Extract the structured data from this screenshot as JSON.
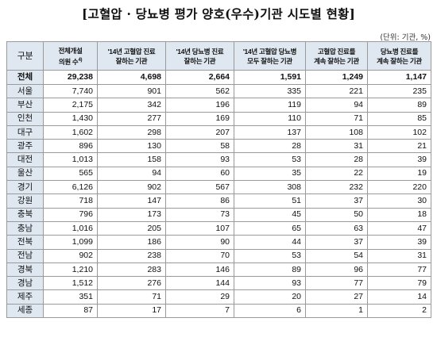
{
  "title": "[고혈압 · 당뇨병 평가 양호(우수)기관 시도별 현황]",
  "unit": "(단위: 기관, %)",
  "headers": [
    "구분",
    "전체개설 의원 수4)",
    "'14년 고혈압 진료 잘하는 기관",
    "'14년 당뇨병 진료 잘하는 기관",
    "'14년 고혈압 당뇨병 모두 잘하는 기관",
    "고혈압 진료를 계속 잘하는 기관",
    "당뇨병 진료를 계속 잘하는 기관"
  ],
  "rows": [
    {
      "region": "전체",
      "c1": "29,238",
      "c2": "4,698",
      "c3": "2,664",
      "c4": "1,591",
      "c5": "1,249",
      "c6": "1,147"
    },
    {
      "region": "서울",
      "c1": "7,740",
      "c2": "901",
      "c3": "562",
      "c4": "335",
      "c5": "221",
      "c6": "235"
    },
    {
      "region": "부산",
      "c1": "2,175",
      "c2": "342",
      "c3": "196",
      "c4": "119",
      "c5": "94",
      "c6": "89"
    },
    {
      "region": "인천",
      "c1": "1,430",
      "c2": "277",
      "c3": "169",
      "c4": "110",
      "c5": "71",
      "c6": "85"
    },
    {
      "region": "대구",
      "c1": "1,602",
      "c2": "298",
      "c3": "207",
      "c4": "137",
      "c5": "108",
      "c6": "102"
    },
    {
      "region": "광주",
      "c1": "896",
      "c2": "130",
      "c3": "58",
      "c4": "28",
      "c5": "31",
      "c6": "21"
    },
    {
      "region": "대전",
      "c1": "1,013",
      "c2": "158",
      "c3": "93",
      "c4": "53",
      "c5": "28",
      "c6": "39"
    },
    {
      "region": "울산",
      "c1": "565",
      "c2": "94",
      "c3": "60",
      "c4": "35",
      "c5": "22",
      "c6": "19"
    },
    {
      "region": "경기",
      "c1": "6,126",
      "c2": "902",
      "c3": "567",
      "c4": "308",
      "c5": "232",
      "c6": "220"
    },
    {
      "region": "강원",
      "c1": "718",
      "c2": "147",
      "c3": "86",
      "c4": "51",
      "c5": "37",
      "c6": "30"
    },
    {
      "region": "충북",
      "c1": "796",
      "c2": "173",
      "c3": "73",
      "c4": "45",
      "c5": "50",
      "c6": "18"
    },
    {
      "region": "충남",
      "c1": "1,016",
      "c2": "205",
      "c3": "107",
      "c4": "65",
      "c5": "63",
      "c6": "47"
    },
    {
      "region": "전북",
      "c1": "1,099",
      "c2": "186",
      "c3": "90",
      "c4": "44",
      "c5": "37",
      "c6": "39"
    },
    {
      "region": "전남",
      "c1": "902",
      "c2": "238",
      "c3": "70",
      "c4": "53",
      "c5": "54",
      "c6": "31"
    },
    {
      "region": "경북",
      "c1": "1,210",
      "c2": "283",
      "c3": "146",
      "c4": "89",
      "c5": "96",
      "c6": "77"
    },
    {
      "region": "경남",
      "c1": "1,512",
      "c2": "276",
      "c3": "144",
      "c4": "93",
      "c5": "77",
      "c6": "79"
    },
    {
      "region": "제주",
      "c1": "351",
      "c2": "71",
      "c3": "29",
      "c4": "20",
      "c5": "27",
      "c6": "14"
    },
    {
      "region": "세종",
      "c1": "87",
      "c2": "17",
      "c3": "7",
      "c4": "6",
      "c5": "1",
      "c6": "2"
    }
  ],
  "colors": {
    "header_bg": "#dfe7f1",
    "border": "#9a9a9a"
  }
}
